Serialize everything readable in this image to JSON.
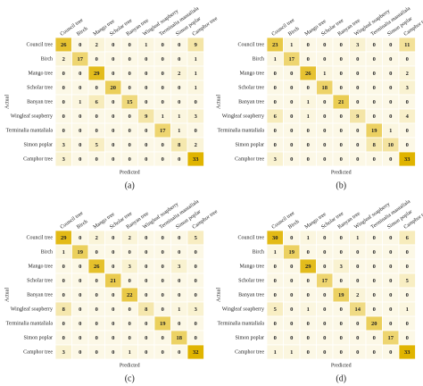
{
  "chart_data": [
    {
      "type": "heatmap",
      "caption": "(a)",
      "x_label": "Predicted",
      "y_label": "Actual",
      "x_categories": [
        "Council tree",
        "Birch",
        "Mango tree",
        "Scholar tree",
        "Banyan tree",
        "Wingleaf soapberry",
        "Terminalia mantaliala",
        "Simon poplar",
        "Camphor tree"
      ],
      "y_categories": [
        "Council tree",
        "Birch",
        "Mango tree",
        "Scholar tree",
        "Banyan tree",
        "Wingleaf soapberry",
        "Terminalia mantaliala",
        "Simon poplar",
        "Camphor tree"
      ],
      "colors": [
        "#fcf8e6",
        "#e0b400"
      ],
      "values": [
        [
          26,
          0,
          2,
          0,
          0,
          1,
          0,
          0,
          9
        ],
        [
          2,
          17,
          0,
          0,
          0,
          0,
          0,
          0,
          1
        ],
        [
          0,
          0,
          29,
          0,
          0,
          0,
          0,
          2,
          1
        ],
        [
          0,
          0,
          0,
          20,
          0,
          0,
          0,
          0,
          1
        ],
        [
          0,
          1,
          6,
          0,
          15,
          0,
          0,
          0,
          0
        ],
        [
          0,
          0,
          0,
          0,
          0,
          9,
          1,
          1,
          3
        ],
        [
          0,
          0,
          0,
          0,
          0,
          0,
          17,
          1,
          0
        ],
        [
          3,
          0,
          5,
          0,
          0,
          0,
          0,
          8,
          2
        ],
        [
          3,
          0,
          0,
          0,
          0,
          0,
          0,
          0,
          33
        ]
      ]
    },
    {
      "type": "heatmap",
      "caption": "(b)",
      "x_label": "Predicted",
      "y_label": "Actual",
      "x_categories": [
        "Council tree",
        "Birch",
        "Mango tree",
        "Scholar tree",
        "Banyan tree",
        "Wingleaf soapberry",
        "Terminalia mantaliala",
        "Simon poplar",
        "Camphor tree"
      ],
      "y_categories": [
        "Council tree",
        "Birch",
        "Mango tree",
        "Scholar tree",
        "Banyan tree",
        "Wingleaf soapberry",
        "Terminalia mantaliala",
        "Simon poplar",
        "Camphor tree"
      ],
      "colors": [
        "#fcf8e6",
        "#e0b400"
      ],
      "values": [
        [
          23,
          1,
          0,
          0,
          0,
          3,
          0,
          0,
          11
        ],
        [
          1,
          17,
          0,
          0,
          0,
          0,
          0,
          0,
          0
        ],
        [
          0,
          0,
          26,
          1,
          0,
          0,
          0,
          0,
          2
        ],
        [
          0,
          0,
          0,
          18,
          0,
          0,
          0,
          0,
          3
        ],
        [
          0,
          0,
          1,
          0,
          21,
          0,
          0,
          0,
          0
        ],
        [
          6,
          0,
          1,
          0,
          0,
          9,
          0,
          0,
          4
        ],
        [
          0,
          0,
          0,
          0,
          0,
          0,
          19,
          1,
          0
        ],
        [
          0,
          0,
          0,
          0,
          0,
          0,
          8,
          10,
          0
        ],
        [
          3,
          0,
          0,
          0,
          0,
          0,
          0,
          0,
          33
        ]
      ]
    },
    {
      "type": "heatmap",
      "caption": "(c)",
      "x_label": "Predicted",
      "y_label": "Actual",
      "x_categories": [
        "Council tree",
        "Birch",
        "Mango tree",
        "Scholar tree",
        "Banyan tree",
        "Wingleaf soapberry",
        "Terminalia mantaliala",
        "Simon poplar",
        "Camphor tree"
      ],
      "y_categories": [
        "Council tree",
        "Birch",
        "Mango tree",
        "Scholar tree",
        "Banyan tree",
        "Wingleaf soapberry",
        "Terminalia mantaliala",
        "Simon poplar",
        "Camphor tree"
      ],
      "colors": [
        "#fcf8e6",
        "#e0b400"
      ],
      "values": [
        [
          29,
          0,
          2,
          0,
          2,
          0,
          0,
          0,
          5
        ],
        [
          1,
          19,
          0,
          0,
          0,
          0,
          0,
          0,
          0
        ],
        [
          0,
          0,
          26,
          0,
          3,
          0,
          0,
          3,
          0
        ],
        [
          0,
          0,
          0,
          21,
          0,
          0,
          0,
          0,
          0
        ],
        [
          0,
          0,
          0,
          0,
          22,
          0,
          0,
          0,
          0
        ],
        [
          8,
          0,
          0,
          0,
          0,
          8,
          0,
          1,
          3
        ],
        [
          0,
          0,
          0,
          0,
          0,
          0,
          19,
          0,
          0
        ],
        [
          0,
          0,
          0,
          0,
          0,
          0,
          0,
          18,
          0
        ],
        [
          3,
          0,
          0,
          0,
          1,
          0,
          0,
          0,
          32
        ]
      ]
    },
    {
      "type": "heatmap",
      "caption": "(d)",
      "x_label": "Predicted",
      "y_label": "Actual",
      "x_categories": [
        "Council tree",
        "Birch",
        "Mango tree",
        "Scholar tree",
        "Banyan tree",
        "Wingleaf soapberry",
        "Terminalia mantaliala",
        "Simon poplar",
        "Camphor tree"
      ],
      "y_categories": [
        "Council tree",
        "Birch",
        "Mango tree",
        "Scholar tree",
        "Banyan tree",
        "Wingleaf soapberry",
        "Terminalia mantaliala",
        "Simon poplar",
        "Camphor tree"
      ],
      "colors": [
        "#fcf8e6",
        "#e0b400"
      ],
      "values": [
        [
          30,
          0,
          1,
          0,
          0,
          1,
          0,
          0,
          6
        ],
        [
          1,
          19,
          0,
          0,
          0,
          0,
          0,
          0,
          0
        ],
        [
          0,
          0,
          29,
          0,
          3,
          0,
          0,
          0,
          0
        ],
        [
          0,
          0,
          0,
          17,
          0,
          0,
          0,
          0,
          5
        ],
        [
          0,
          0,
          0,
          0,
          19,
          2,
          0,
          0,
          0
        ],
        [
          5,
          0,
          1,
          0,
          0,
          14,
          0,
          0,
          1
        ],
        [
          0,
          0,
          0,
          0,
          0,
          0,
          20,
          0,
          0
        ],
        [
          0,
          0,
          0,
          0,
          0,
          0,
          0,
          17,
          0
        ],
        [
          1,
          1,
          0,
          0,
          0,
          0,
          0,
          0,
          33
        ]
      ]
    }
  ]
}
